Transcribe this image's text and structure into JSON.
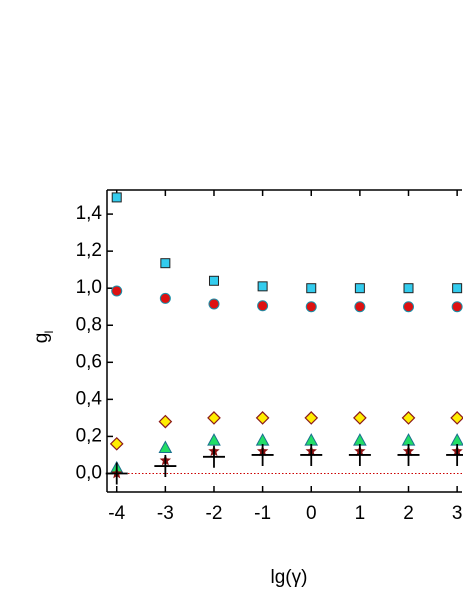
{
  "chart_data": {
    "type": "scatter",
    "x_label": "lg(γ)",
    "y_label": "g",
    "y_label_subscript": "l",
    "xlim": [
      -4.2,
      3.1
    ],
    "ylim": [
      -0.1,
      1.53
    ],
    "xticks": [
      -4,
      -3,
      -2,
      -1,
      0,
      1,
      2,
      3
    ],
    "yticks": [
      {
        "value": 0,
        "label": "0,0"
      },
      {
        "value": 0.2,
        "label": "0,2"
      },
      {
        "value": 0.4,
        "label": "0,4"
      },
      {
        "value": 0.6,
        "label": "0,6"
      },
      {
        "value": 0.8,
        "label": "0,8"
      },
      {
        "value": 1.0,
        "label": "1,0"
      },
      {
        "value": 1.2,
        "label": "1,2"
      },
      {
        "value": 1.4,
        "label": "1,4"
      }
    ],
    "reference_line": {
      "y": 0,
      "color": "#cc0000"
    },
    "x": [
      -4,
      -3,
      -2,
      -1,
      0,
      1,
      2,
      3
    ],
    "series": [
      {
        "marker": "square",
        "color": "#33ccee",
        "values": [
          1.49,
          1.135,
          1.04,
          1.01,
          1.0,
          1.0,
          1.0,
          1.0
        ]
      },
      {
        "marker": "circle",
        "color": "#dd1111",
        "values": [
          0.985,
          0.945,
          0.915,
          0.905,
          0.9,
          0.9,
          0.9,
          0.9
        ]
      },
      {
        "marker": "diamond",
        "color": "#ffee00",
        "values": [
          0.16,
          0.28,
          0.3,
          0.3,
          0.3,
          0.3,
          0.3,
          0.3
        ]
      },
      {
        "marker": "triangle",
        "color": "#22dd66",
        "values": [
          0.03,
          0.14,
          0.18,
          0.18,
          0.18,
          0.18,
          0.18,
          0.18
        ]
      },
      {
        "marker": "star",
        "color": "#8b1010",
        "values": [
          0.0,
          0.07,
          0.12,
          0.12,
          0.12,
          0.12,
          0.12,
          0.12
        ]
      },
      {
        "marker": "cross",
        "color": "#000000",
        "values": [
          0.0,
          0.04,
          0.09,
          0.1,
          0.1,
          0.1,
          0.1,
          0.1
        ]
      }
    ]
  }
}
